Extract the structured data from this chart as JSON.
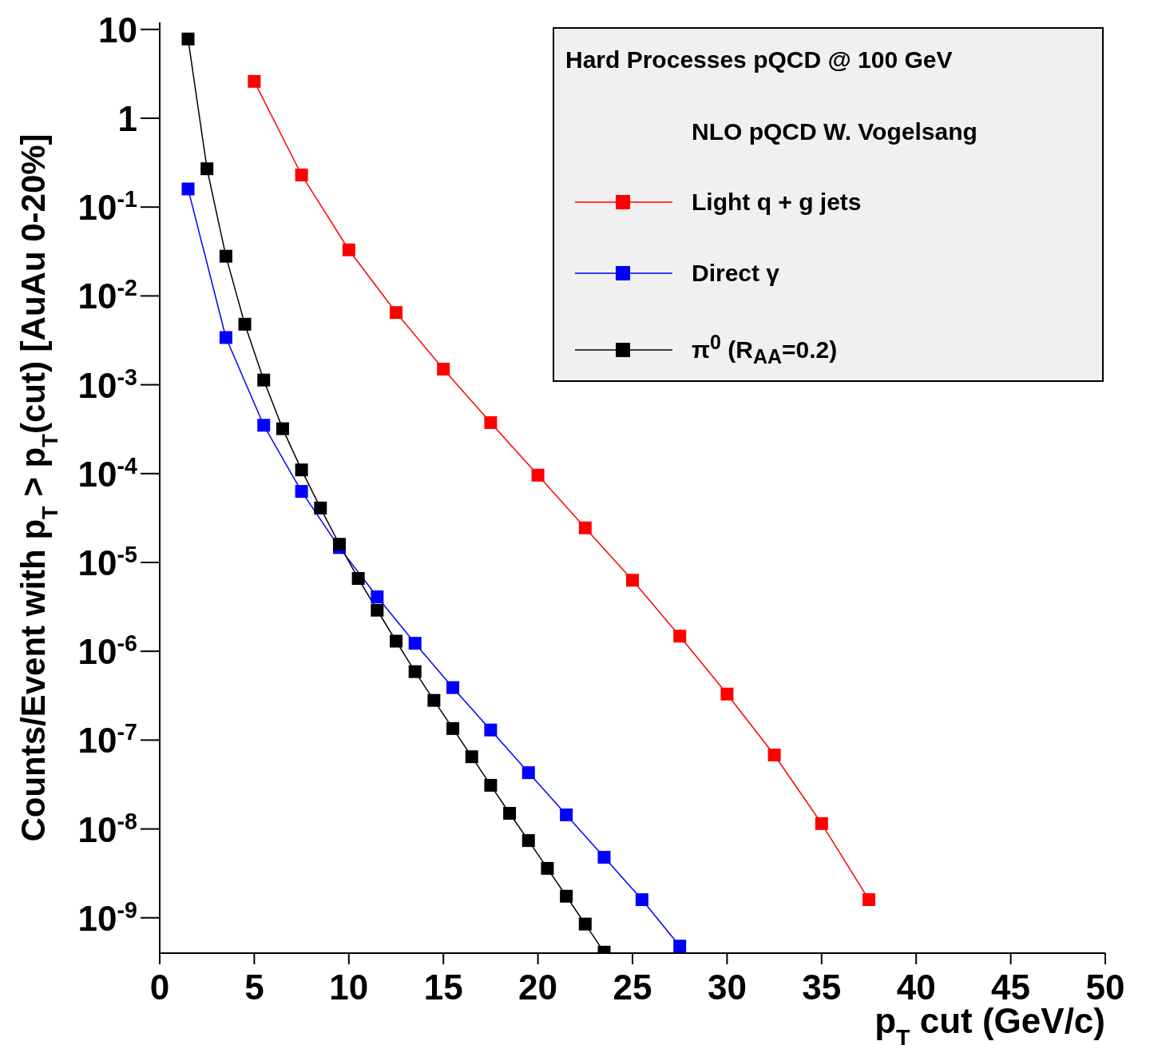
{
  "chart_data": {
    "type": "line",
    "xlabel": "p$_{T}$ cut (GeV/c)",
    "ylabel": "Counts/Event with p$_{T}$ > p$_{T}$(cut) [AuAu 0-20%]",
    "legend_title": "Hard Processes pQCD @ 100 GeV",
    "annotations": [
      "NLO pQCD W. Vogelsang"
    ],
    "log": "y",
    "grid": false,
    "legend": "top right",
    "marker": "square",
    "line_style": "solid",
    "xlim": [
      0,
      50
    ],
    "xticks": [
      0,
      5,
      10,
      15,
      20,
      25,
      30,
      35,
      40,
      45,
      50
    ],
    "ylim": [
      4e-10,
      12
    ],
    "yticks": [
      10,
      1,
      {
        "value": 0.1,
        "label": "10$^{-1}$"
      },
      {
        "value": 0.01,
        "label": "10$^{-2}$"
      },
      {
        "value": 0.001,
        "label": "10$^{-3}$"
      },
      {
        "value": 0.0001,
        "label": "10$^{-4}$"
      },
      {
        "value": 1e-05,
        "label": "10$^{-5}$"
      },
      {
        "value": 1e-06,
        "label": "10$^{-6}$"
      },
      {
        "value": 1e-07,
        "label": "10$^{-7}$"
      },
      {
        "value": 1e-08,
        "label": "10$^{-8}$"
      },
      {
        "value": 1e-09,
        "label": "10$^{-9}$"
      }
    ],
    "series": [
      {
        "name": "Light q + g jets",
        "color": "#ff0000",
        "x": [
          5,
          7.5,
          10,
          12.5,
          15,
          17.5,
          20,
          22.5,
          25,
          27.5,
          30,
          32.5,
          35,
          37.5
        ],
        "values": [
          2.6,
          0.23,
          0.033,
          0.0065,
          0.0015,
          0.000375,
          9.6e-05,
          2.45e-05,
          6.3e-06,
          1.48e-06,
          3.3e-07,
          6.8e-08,
          1.15e-08,
          1.6e-09
        ]
      },
      {
        "name": "Direct γ",
        "color": "#0000ff",
        "x": [
          1.5,
          3.5,
          5.5,
          7.5,
          9.5,
          11.5,
          13.5,
          15.5,
          17.5,
          19.5,
          21.5,
          23.5,
          25.5,
          27.5
        ],
        "values": [
          0.16,
          0.0034,
          0.00035,
          6.3e-05,
          1.47e-05,
          4.1e-06,
          1.23e-06,
          3.9e-07,
          1.3e-07,
          4.3e-08,
          1.44e-08,
          4.8e-09,
          1.6e-09,
          4.8e-10
        ]
      },
      {
        "name": "π$^{0}$ (R$_{AA}$=0.2)",
        "color": "#000000",
        "x": [
          1.5,
          2.5,
          3.5,
          4.5,
          5.5,
          6.5,
          7.5,
          8.5,
          9.5,
          10.5,
          11.5,
          12.5,
          13.5,
          14.5,
          15.5,
          16.5,
          17.5,
          18.5,
          19.5,
          20.5,
          21.5,
          22.5,
          23.5
        ],
        "values": [
          7.8,
          0.27,
          0.028,
          0.0048,
          0.00113,
          0.00032,
          0.00011,
          4.1e-05,
          1.6e-05,
          6.6e-06,
          2.9e-06,
          1.3e-06,
          5.9e-07,
          2.8e-07,
          1.35e-07,
          6.5e-08,
          3.1e-08,
          1.5e-08,
          7.4e-09,
          3.6e-09,
          1.75e-09,
          8.5e-10,
          4.1e-10
        ]
      }
    ]
  }
}
